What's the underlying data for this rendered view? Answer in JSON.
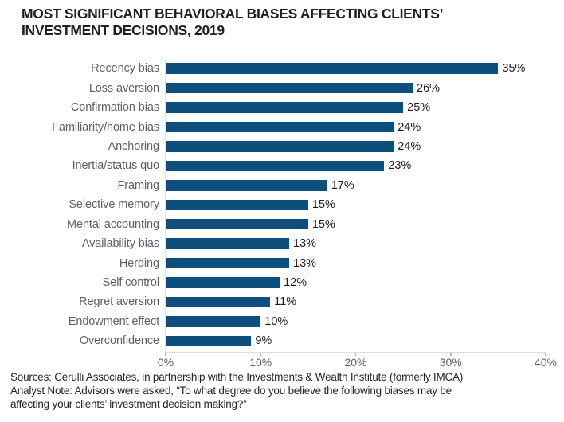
{
  "header": {
    "title_line1": "MOST SIGNIFICANT BEHAVIORAL BIASES AFFECTING CLIENTS’",
    "title_line2": "INVESTMENT DECISIONS, 2019"
  },
  "chart_data": {
    "type": "bar",
    "orientation": "horizontal",
    "title": "MOST SIGNIFICANT BEHAVIORAL BIASES AFFECTING CLIENTS’ INVESTMENT DECISIONS, 2019",
    "categories": [
      "Recency bias",
      "Loss aversion",
      "Confirmation bias",
      "Familiarity/home bias",
      "Anchoring",
      "Inertia/status quo",
      "Framing",
      "Selective memory",
      "Mental accounting",
      "Availability bias",
      "Herding",
      "Self control",
      "Regret aversion",
      "Endowment effect",
      "Overconfidence"
    ],
    "values": [
      35,
      26,
      25,
      24,
      24,
      23,
      17,
      15,
      15,
      13,
      13,
      12,
      11,
      10,
      9
    ],
    "value_labels": [
      "35%",
      "26%",
      "25%",
      "24%",
      "24%",
      "23%",
      "17%",
      "15%",
      "15%",
      "13%",
      "13%",
      "12%",
      "11%",
      "10%",
      "9%"
    ],
    "xlabel": "",
    "ylabel": "",
    "xlim": [
      0,
      40
    ],
    "x_ticks": [
      "0%",
      "10%",
      "20%",
      "30%",
      "40%"
    ],
    "x_tick_values": [
      0,
      10,
      20,
      30,
      40
    ],
    "bar_color": "#0d4e7c",
    "grid": false,
    "legend": null
  },
  "colors": {
    "bar": "#0d4e7c",
    "category_label": "#5b626b",
    "value_label": "#1b1b1b",
    "axis_line": "#d7dde2",
    "title": "#1f1f1f"
  },
  "footer": {
    "lines": [
      "Sources: Cerulli Associates, in partnership with the Investments & Wealth Institute (formerly IMCA)",
      "Analyst Note: Advisors were asked, “To what degree do you believe the following biases may be",
      "affecting your clients’ investment decision making?”"
    ]
  }
}
